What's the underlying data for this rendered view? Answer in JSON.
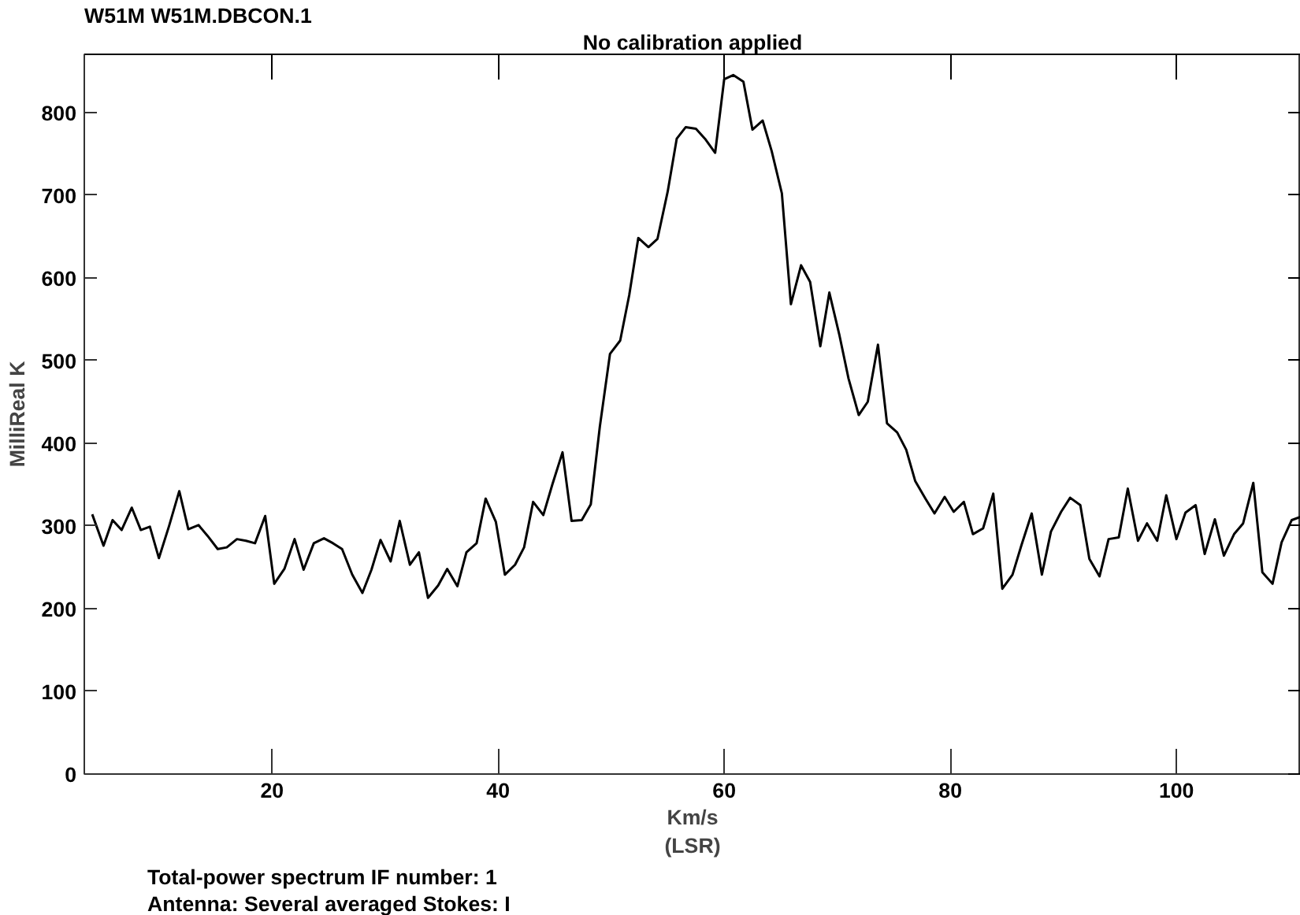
{
  "chart_data": {
    "type": "line",
    "title": "W51M   W51M.DBCON.1",
    "xlabel": "Km/s\n(LSR)",
    "ylabel": "MilliReal K",
    "annotations": [
      "No calibration applied",
      "Total-power spectrum    IF number:   1",
      "Antenna: Several averaged      Stokes: I"
    ],
    "xlim": [
      3.4,
      111
    ],
    "ylim": [
      0,
      870
    ],
    "xticks": [
      20,
      40,
      60,
      80,
      100
    ],
    "yticks": [
      0,
      100,
      200,
      300,
      400,
      500,
      600,
      700,
      800
    ],
    "grid": false,
    "marker": "none",
    "line_style": "solid",
    "series": [
      {
        "color": "#000000",
        "x": [
          4.1,
          5.1,
          5.9,
          6.7,
          7.6,
          8.4,
          9.2,
          10.0,
          10.9,
          11.8,
          12.6,
          13.5,
          14.3,
          15.2,
          16.0,
          16.9,
          17.7,
          18.5,
          19.4,
          20.2,
          21.1,
          22.0,
          22.8,
          23.7,
          24.6,
          25.4,
          26.2,
          27.1,
          28.0,
          28.8,
          29.6,
          30.5,
          31.3,
          32.2,
          33.0,
          33.8,
          34.7,
          35.5,
          36.4,
          37.2,
          38.1,
          38.9,
          39.8,
          40.6,
          41.5,
          42.3,
          43.1,
          44.0,
          44.8,
          45.7,
          46.5,
          47.4,
          48.2,
          49.0,
          49.9,
          50.8,
          51.6,
          52.4,
          53.3,
          54.1,
          55.0,
          55.8,
          56.6,
          57.5,
          58.3,
          59.2,
          60.0,
          60.8,
          61.7,
          62.5,
          63.4,
          64.2,
          65.1,
          65.9,
          66.8,
          67.6,
          68.5,
          69.3,
          70.2,
          71.0,
          71.9,
          72.7,
          73.6,
          74.4,
          75.3,
          76.1,
          76.9,
          77.8,
          78.6,
          79.5,
          80.3,
          81.2,
          82.0,
          82.9,
          83.8,
          84.6,
          85.5,
          86.3,
          87.2,
          88.1,
          88.9,
          89.8,
          90.6,
          91.5,
          92.3,
          93.2,
          94.0,
          94.9,
          95.7,
          96.6,
          97.4,
          98.3,
          99.1,
          100.0,
          100.8,
          101.7,
          102.5,
          103.4,
          104.2,
          105.1,
          105.9,
          106.8,
          107.6,
          108.5,
          109.3,
          110.2,
          111.0
        ],
        "values": [
          314,
          276,
          307,
          295,
          322,
          295,
          299,
          261,
          300,
          342,
          296,
          301,
          288,
          272,
          274,
          284,
          282,
          279,
          312,
          230,
          248,
          284,
          247,
          279,
          285,
          279,
          272,
          241,
          219,
          247,
          283,
          257,
          306,
          253,
          268,
          213,
          228,
          248,
          227,
          268,
          279,
          333,
          305,
          241,
          253,
          274,
          329,
          313,
          350,
          389,
          306,
          307,
          326,
          420,
          508,
          524,
          579,
          648,
          637,
          647,
          704,
          768,
          782,
          780,
          768,
          751,
          840,
          845,
          837,
          779,
          790,
          753,
          702,
          568,
          615,
          595,
          517,
          582,
          530,
          478,
          434,
          450,
          519,
          424,
          413,
          392,
          354,
          333,
          315,
          335,
          317,
          329,
          290,
          297,
          339,
          224,
          241,
          277,
          315,
          241,
          293,
          317,
          334,
          325,
          260,
          239,
          284,
          286,
          345,
          282,
          303,
          282,
          337,
          284,
          316,
          325,
          266,
          308,
          264,
          290,
          303,
          352,
          244,
          230,
          280,
          307,
          311
        ]
      }
    ]
  }
}
